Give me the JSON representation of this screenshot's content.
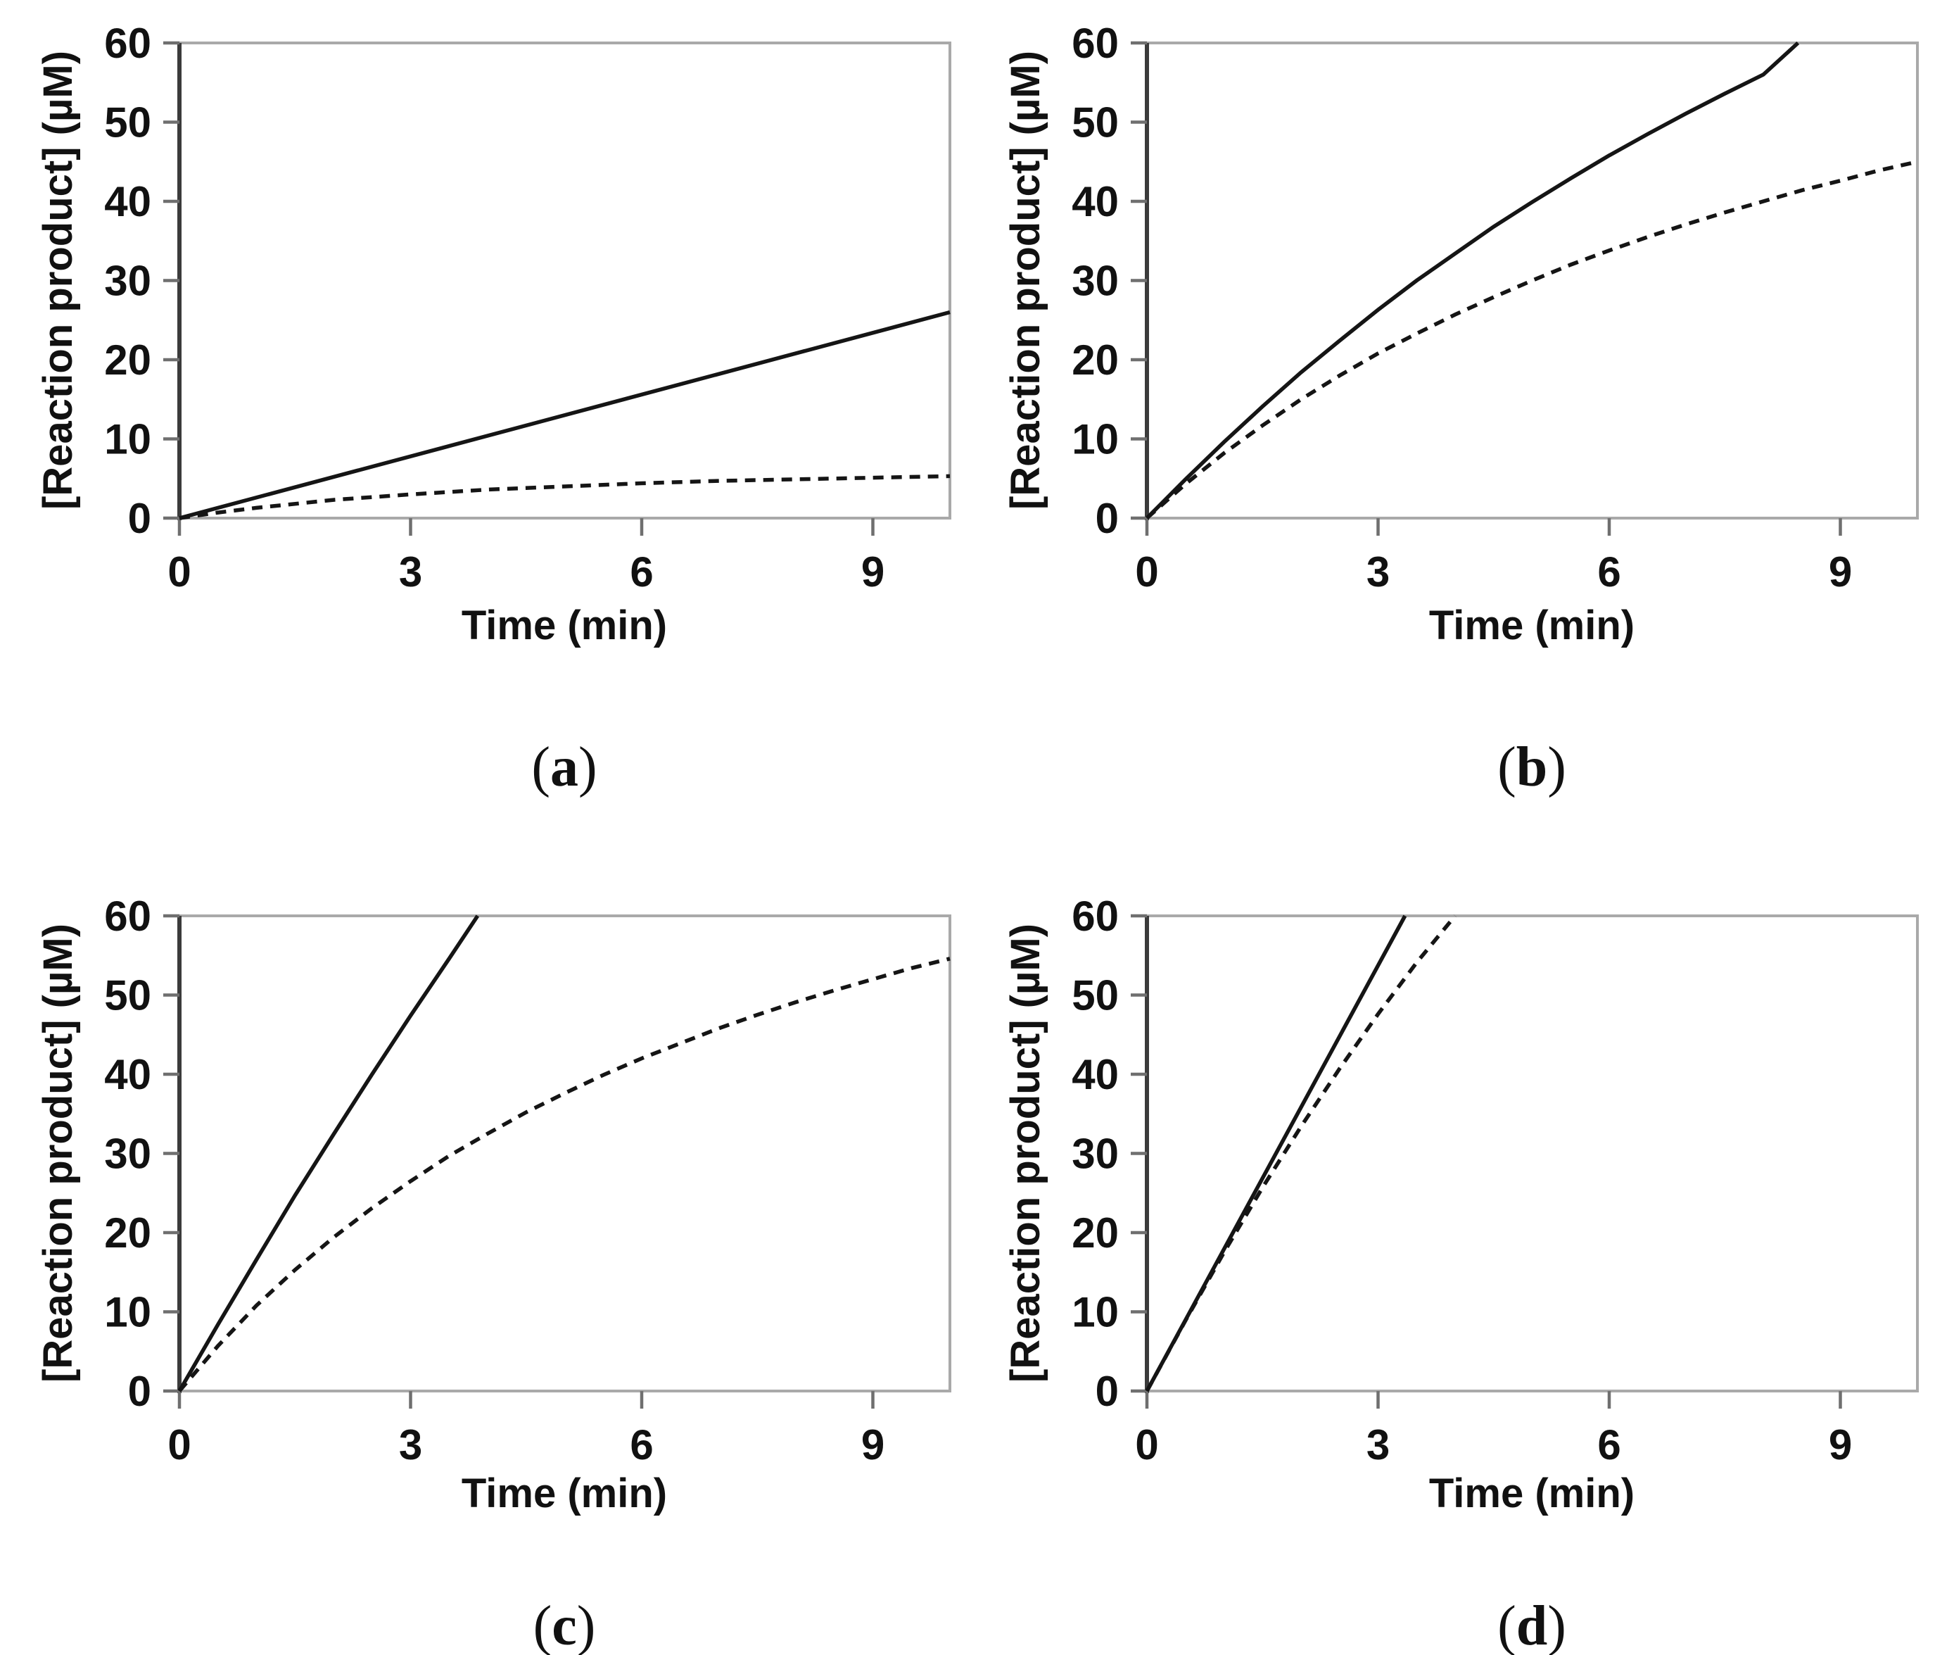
{
  "figure": {
    "type": "four-panel scientific figure",
    "background": "#ffffff",
    "line_color": "#151515",
    "frame_color": "#a9a9a9",
    "axis_color": "#3b3b3b"
  },
  "chart_data": [
    {
      "panel": "a",
      "type": "line",
      "caption": {
        "open": "(",
        "letter": "a",
        "close": ")"
      },
      "xlabel": "Time (min)",
      "ylabel": "[Reaction product] (µM)",
      "xlim": [
        0,
        10
      ],
      "ylim": [
        0,
        60
      ],
      "xticks": [
        0,
        3,
        6,
        9
      ],
      "yticks": [
        0,
        10,
        20,
        30,
        40,
        50,
        60
      ],
      "grid": false,
      "legend": null,
      "series": [
        {
          "name": "solid-line",
          "line_style": "solid",
          "points": [
            [
              0,
              0
            ],
            [
              10,
              26
            ]
          ]
        },
        {
          "name": "dashed-line",
          "line_style": "dashed",
          "points": [
            [
              0,
              0
            ],
            [
              0.5,
              0.7
            ],
            [
              1,
              1.3
            ],
            [
              2,
              2.3
            ],
            [
              3,
              3.0
            ],
            [
              4,
              3.6
            ],
            [
              5,
              4.0
            ],
            [
              6,
              4.4
            ],
            [
              7,
              4.7
            ],
            [
              8,
              4.9
            ],
            [
              9,
              5.1
            ],
            [
              10,
              5.3
            ]
          ]
        }
      ]
    },
    {
      "panel": "b",
      "type": "line",
      "caption": {
        "open": "(",
        "letter": "b",
        "close": ")"
      },
      "xlabel": "Time (min)",
      "ylabel": "[Reaction product] (µM)",
      "xlim": [
        0,
        10
      ],
      "ylim": [
        0,
        60
      ],
      "xticks": [
        0,
        3,
        6,
        9
      ],
      "yticks": [
        0,
        10,
        20,
        30,
        40,
        50,
        60
      ],
      "grid": false,
      "legend": null,
      "series": [
        {
          "name": "solid-line",
          "line_style": "solid",
          "points": [
            [
              0,
              0
            ],
            [
              0.5,
              4.9
            ],
            [
              1,
              9.6
            ],
            [
              1.5,
              14.1
            ],
            [
              2,
              18.4
            ],
            [
              2.5,
              22.4
            ],
            [
              3,
              26.3
            ],
            [
              3.5,
              30.0
            ],
            [
              4,
              33.4
            ],
            [
              4.5,
              36.8
            ],
            [
              5,
              39.9
            ],
            [
              5.5,
              42.9
            ],
            [
              6,
              45.8
            ],
            [
              6.5,
              48.5
            ],
            [
              7,
              51.1
            ],
            [
              7.5,
              53.6
            ],
            [
              8,
              56.0
            ],
            [
              8.45,
              60
            ]
          ]
        },
        {
          "name": "dashed-line",
          "line_style": "dashed",
          "points": [
            [
              0,
              0
            ],
            [
              0.5,
              4.3
            ],
            [
              1,
              8.2
            ],
            [
              1.5,
              11.7
            ],
            [
              2,
              15.0
            ],
            [
              2.5,
              18.0
            ],
            [
              3,
              20.8
            ],
            [
              3.5,
              23.3
            ],
            [
              4,
              25.7
            ],
            [
              4.5,
              27.9
            ],
            [
              5,
              30.0
            ],
            [
              5.5,
              32.0
            ],
            [
              6,
              33.8
            ],
            [
              6.5,
              35.5
            ],
            [
              7,
              37.1
            ],
            [
              7.5,
              38.6
            ],
            [
              8,
              40.0
            ],
            [
              8.5,
              41.4
            ],
            [
              9,
              42.6
            ],
            [
              9.5,
              43.9
            ],
            [
              10,
              45.0
            ]
          ]
        }
      ]
    },
    {
      "panel": "c",
      "type": "line",
      "caption": {
        "open": "(",
        "letter": "c",
        "close": ")"
      },
      "xlabel": "Time (min)",
      "ylabel": "[Reaction product] (µM)",
      "xlim": [
        0,
        10
      ],
      "ylim": [
        0,
        60
      ],
      "xticks": [
        0,
        3,
        6,
        9
      ],
      "yticks": [
        0,
        10,
        20,
        30,
        40,
        50,
        60
      ],
      "grid": false,
      "legend": null,
      "series": [
        {
          "name": "solid-line",
          "line_style": "solid",
          "points": [
            [
              0,
              0
            ],
            [
              0.5,
              8.4
            ],
            [
              1,
              16.6
            ],
            [
              1.5,
              24.7
            ],
            [
              2,
              32.4
            ],
            [
              2.5,
              40.0
            ],
            [
              3,
              47.4
            ],
            [
              3.5,
              54.6
            ],
            [
              3.87,
              60
            ]
          ]
        },
        {
          "name": "dashed-line",
          "line_style": "dashed",
          "points": [
            [
              0,
              0
            ],
            [
              0.5,
              5.7
            ],
            [
              1,
              10.8
            ],
            [
              1.5,
              15.3
            ],
            [
              2,
              19.4
            ],
            [
              2.5,
              23.1
            ],
            [
              3,
              26.5
            ],
            [
              3.5,
              29.7
            ],
            [
              4,
              32.5
            ],
            [
              4.5,
              35.2
            ],
            [
              5,
              37.6
            ],
            [
              5.5,
              39.9
            ],
            [
              6,
              42.0
            ],
            [
              6.5,
              43.9
            ],
            [
              7,
              45.8
            ],
            [
              7.5,
              47.5
            ],
            [
              8,
              49.1
            ],
            [
              8.5,
              50.6
            ],
            [
              9,
              52.0
            ],
            [
              9.5,
              53.4
            ],
            [
              10,
              54.6
            ]
          ]
        }
      ]
    },
    {
      "panel": "d",
      "type": "line",
      "caption": {
        "open": "(",
        "letter": "d",
        "close": ")"
      },
      "xlabel": "Time (min)",
      "ylabel": "[Reaction product] (µM)",
      "xlim": [
        0,
        10
      ],
      "ylim": [
        0,
        60
      ],
      "xticks": [
        0,
        3,
        6,
        9
      ],
      "yticks": [
        0,
        10,
        20,
        30,
        40,
        50,
        60
      ],
      "grid": false,
      "legend": null,
      "series": [
        {
          "name": "solid-line",
          "line_style": "solid",
          "points": [
            [
              0,
              0
            ],
            [
              3.35,
              60
            ]
          ]
        },
        {
          "name": "dashed-line",
          "line_style": "dashed",
          "points": [
            [
              0,
              0
            ],
            [
              0.5,
              8.9
            ],
            [
              1,
              17.5
            ],
            [
              1.5,
              25.7
            ],
            [
              2,
              33.4
            ],
            [
              2.5,
              40.7
            ],
            [
              3,
              47.6
            ],
            [
              3.5,
              54.1
            ],
            [
              4,
              60
            ]
          ]
        }
      ]
    }
  ]
}
